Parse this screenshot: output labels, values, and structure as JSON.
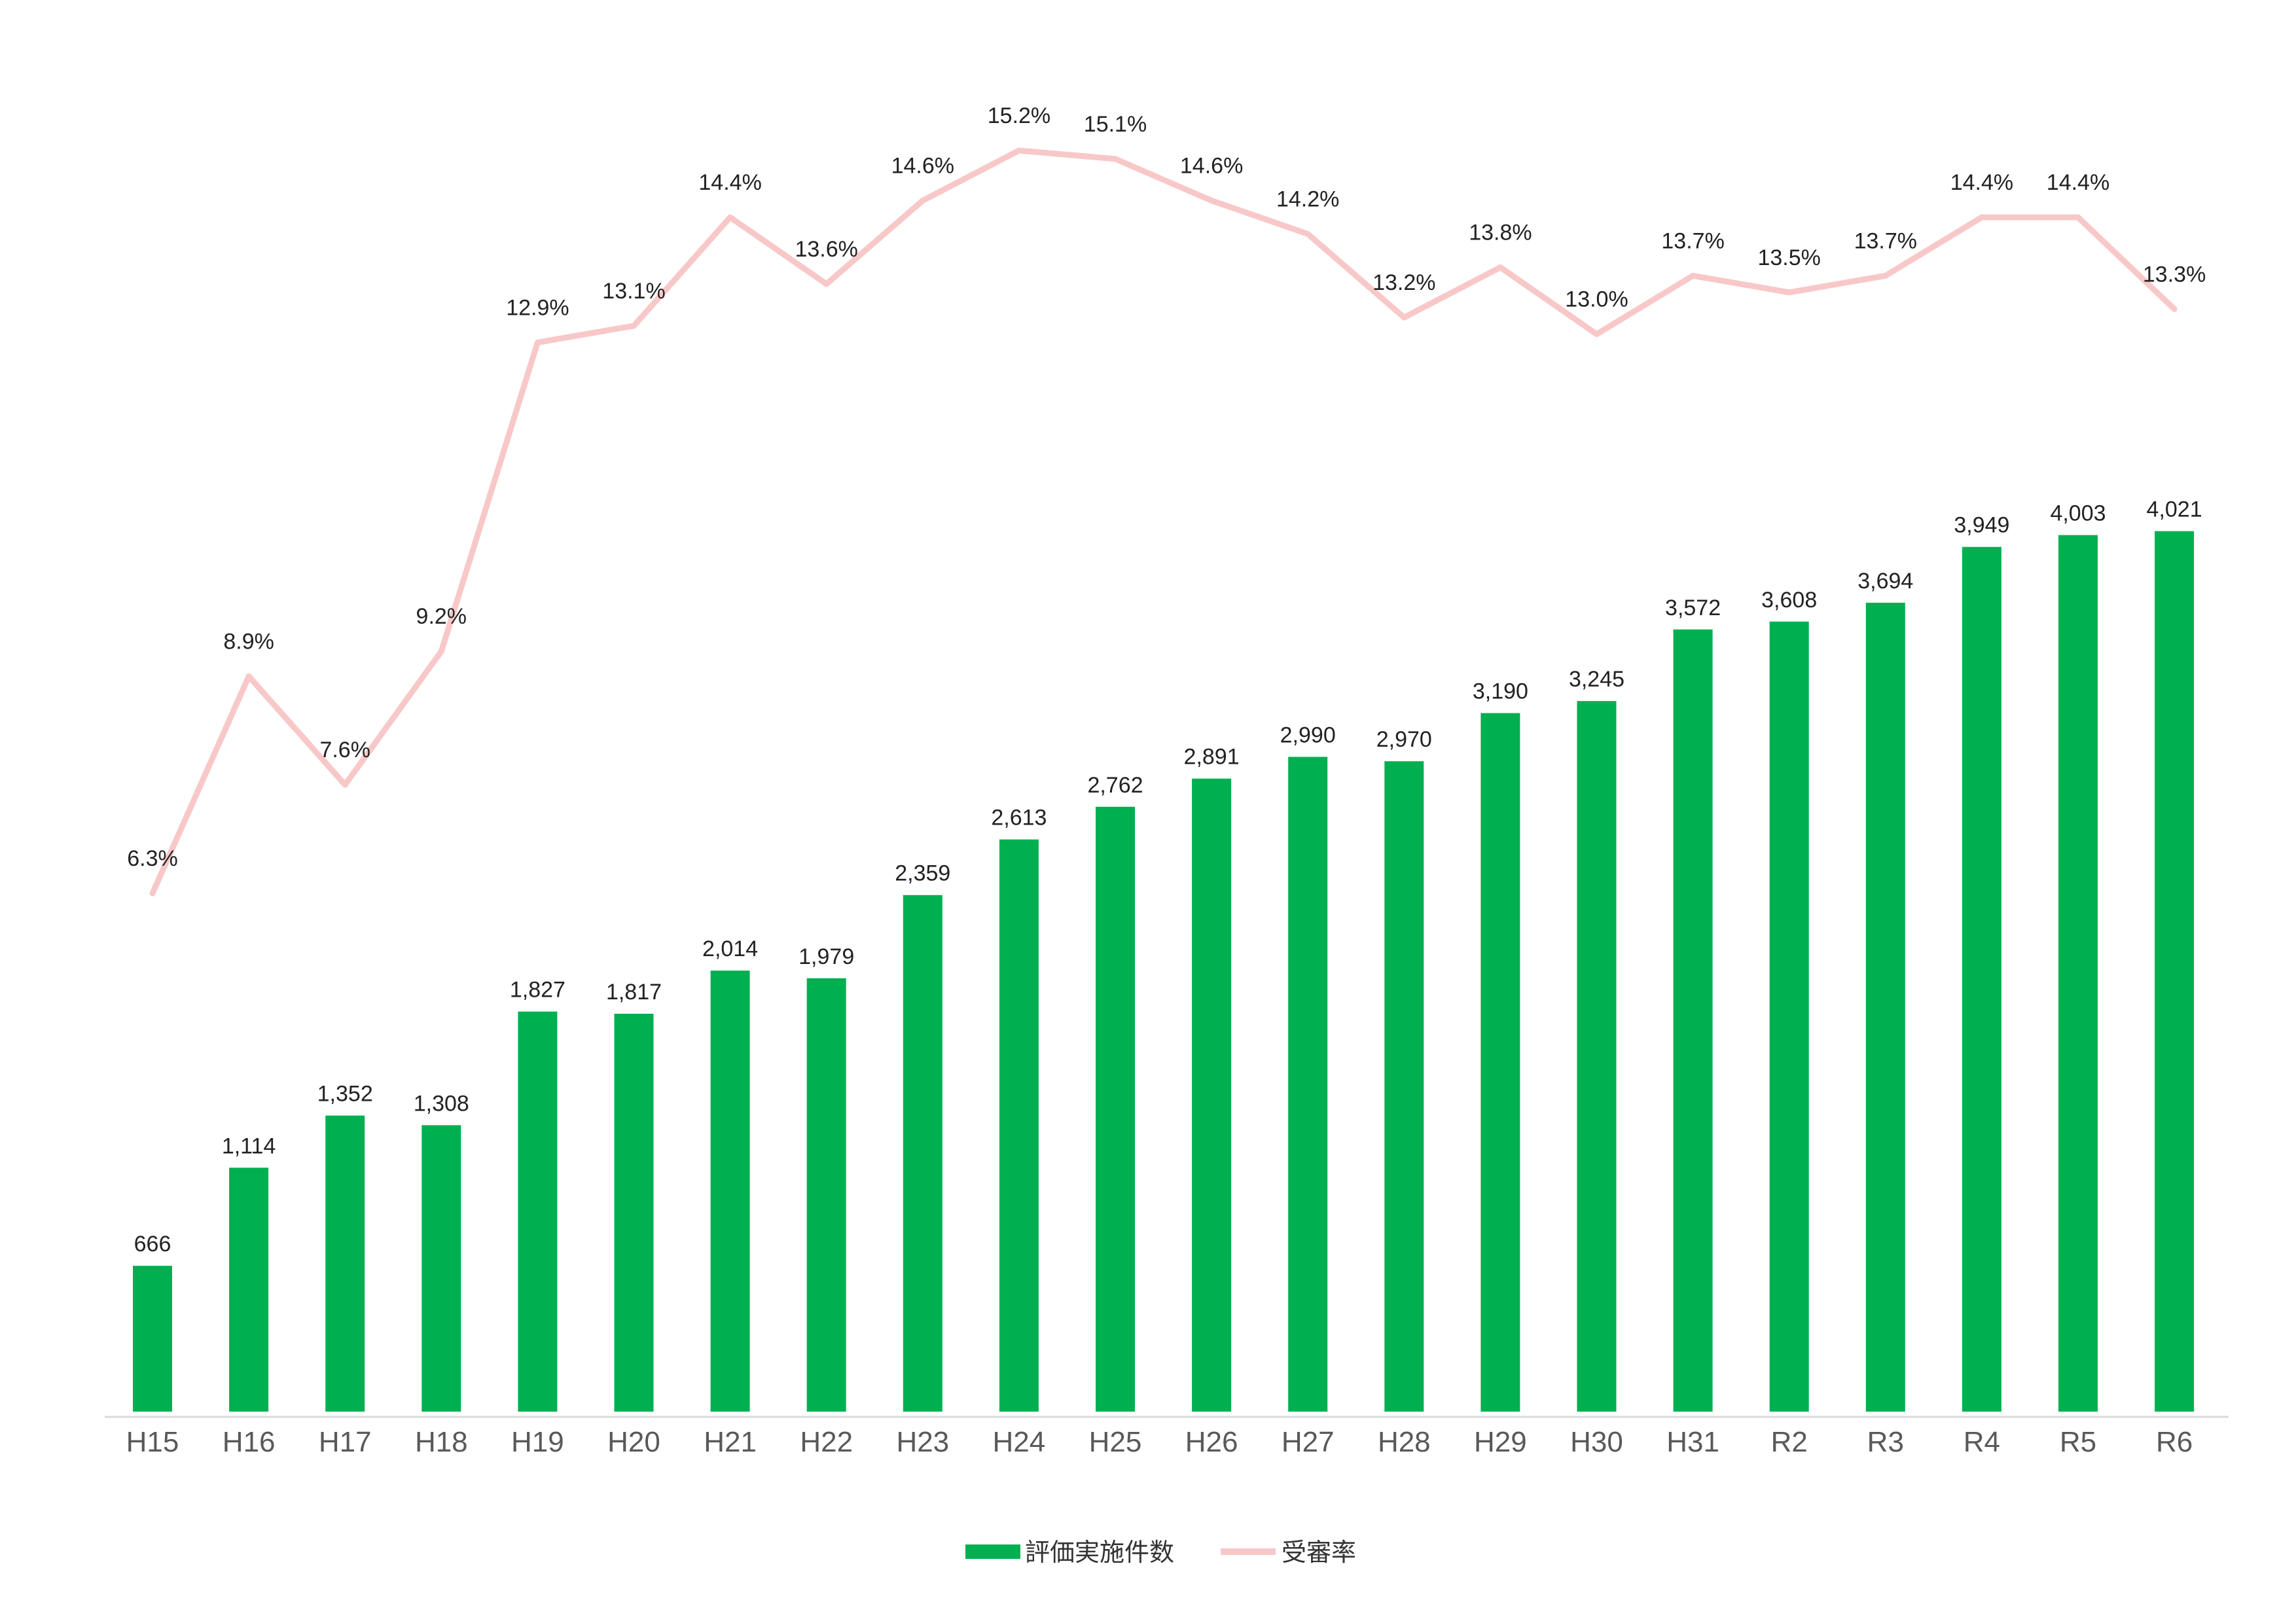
{
  "chart_data": {
    "type": "bar+line",
    "title": "",
    "categories": [
      "H15",
      "H16",
      "H17",
      "H18",
      "H19",
      "H20",
      "H21",
      "H22",
      "H23",
      "H24",
      "H25",
      "H26",
      "H27",
      "H28",
      "H29",
      "H30",
      "H31",
      "R2",
      "R3",
      "R4",
      "R5",
      "R6"
    ],
    "series": [
      {
        "name": "評価実施件数",
        "type": "bar",
        "color": "#00b050",
        "values": [
          666,
          1114,
          1352,
          1308,
          1827,
          1817,
          2014,
          1979,
          2359,
          2613,
          2762,
          2891,
          2990,
          2970,
          3190,
          3245,
          3572,
          3608,
          3694,
          3949,
          4003,
          4021
        ],
        "labels": [
          "666",
          "1,114",
          "1,352",
          "1,308",
          "1,827",
          "1,817",
          "2,014",
          "1,979",
          "2,359",
          "2,613",
          "2,762",
          "2,891",
          "2,990",
          "2,970",
          "3,190",
          "3,245",
          "3,572",
          "3,608",
          "3,694",
          "3,949",
          "4,003",
          "4,021"
        ]
      },
      {
        "name": "受審率",
        "type": "line",
        "color": "#f8c8c8",
        "values": [
          6.3,
          8.9,
          7.6,
          9.2,
          12.9,
          13.1,
          14.4,
          13.6,
          14.6,
          15.2,
          15.1,
          14.6,
          14.2,
          13.2,
          13.8,
          13.0,
          13.7,
          13.5,
          13.7,
          14.4,
          14.4,
          13.3
        ],
        "labels": [
          "6.3%",
          "8.9%",
          "7.6%",
          "9.2%",
          "12.9%",
          "13.1%",
          "14.4%",
          "13.6%",
          "14.6%",
          "15.2%",
          "15.1%",
          "14.6%",
          "14.2%",
          "13.2%",
          "13.8%",
          "13.0%",
          "13.7%",
          "13.5%",
          "13.7%",
          "14.4%",
          "14.4%",
          "13.3%"
        ]
      }
    ],
    "axes": {
      "bar_ylim": [
        0,
        4000
      ],
      "rate_ylim": [
        0,
        16
      ],
      "grid": false
    },
    "legend_position": "bottom-center",
    "axis_color": "#d9d9d9"
  }
}
